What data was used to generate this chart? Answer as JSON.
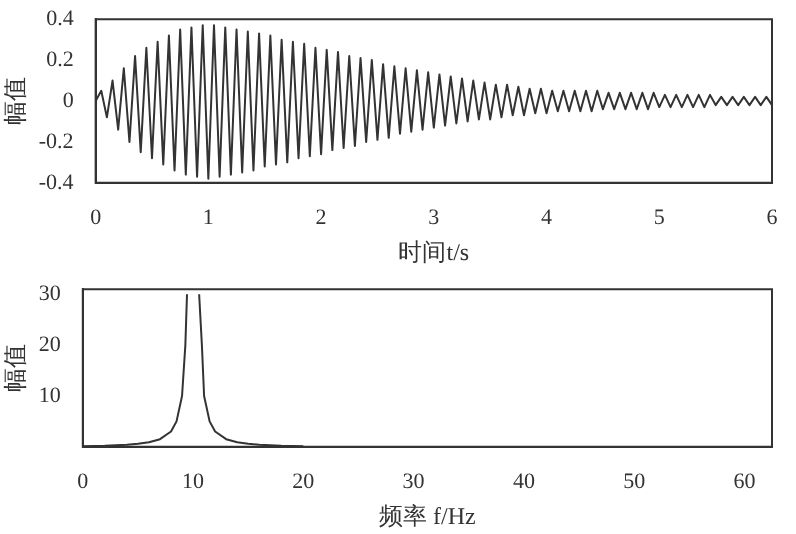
{
  "chart_data": [
    {
      "type": "line",
      "xlabel": "时间t/s",
      "ylabel": "幅值",
      "color": "#333333",
      "marker": "none",
      "xlim": [
        0,
        6
      ],
      "xticks": [
        0,
        1,
        2,
        3,
        4,
        5,
        6
      ],
      "ylim": [
        -0.4,
        0.4
      ],
      "yticks": [
        -0.4,
        -0.2,
        0,
        0.2,
        0.4
      ],
      "x": [
        0,
        0.05,
        0.1,
        0.15,
        0.2,
        0.25,
        0.3,
        0.35,
        0.4,
        0.45,
        0.5,
        0.55,
        0.6,
        0.65,
        0.7,
        0.75,
        0.8,
        0.85,
        0.9,
        0.95,
        1,
        1.05,
        1.1,
        1.15,
        1.2,
        1.25,
        1.3,
        1.35,
        1.4,
        1.45,
        1.5,
        1.55,
        1.6,
        1.65,
        1.7,
        1.75,
        1.8,
        1.85,
        1.9,
        1.95,
        2,
        2.05,
        2.1,
        2.15,
        2.2,
        2.25,
        2.3,
        2.35,
        2.4,
        2.45,
        2.5,
        2.55,
        2.6,
        2.65,
        2.7,
        2.75,
        2.8,
        2.85,
        2.9,
        2.95,
        3,
        3.05,
        3.1,
        3.15,
        3.2,
        3.25,
        3.3,
        3.35,
        3.4,
        3.45,
        3.5,
        3.55,
        3.6,
        3.65,
        3.7,
        3.75,
        3.8,
        3.85,
        3.9,
        3.95,
        4,
        4.05,
        4.1,
        4.15,
        4.2,
        4.25,
        4.3,
        4.35,
        4.4,
        4.45,
        4.5,
        4.55,
        4.6,
        4.65,
        4.7,
        4.75,
        4.8,
        4.85,
        4.9,
        4.95,
        5,
        5.05,
        5.1,
        5.15,
        5.2,
        5.25,
        5.3,
        5.35,
        5.4,
        5.45,
        5.5,
        5.55,
        5.6,
        5.65,
        5.7,
        5.75,
        5.8,
        5.85,
        5.9,
        5.95,
        6
      ],
      "values": [
        0,
        0.05,
        -0.08,
        0.1,
        -0.14,
        0.16,
        -0.2,
        0.22,
        -0.25,
        0.26,
        -0.28,
        0.29,
        -0.31,
        0.32,
        -0.34,
        0.35,
        -0.36,
        0.36,
        -0.37,
        0.37,
        -0.38,
        0.37,
        -0.37,
        0.36,
        -0.36,
        0.35,
        -0.35,
        0.34,
        -0.34,
        0.33,
        -0.32,
        0.32,
        -0.31,
        0.3,
        -0.3,
        0.29,
        -0.28,
        0.28,
        -0.27,
        0.26,
        -0.26,
        0.25,
        -0.24,
        0.24,
        -0.23,
        0.22,
        -0.22,
        0.21,
        -0.2,
        0.2,
        -0.19,
        0.18,
        -0.18,
        0.17,
        -0.16,
        0.16,
        -0.15,
        0.15,
        -0.14,
        0.14,
        -0.13,
        0.13,
        -0.12,
        0.12,
        -0.11,
        0.11,
        -0.1,
        0.1,
        -0.09,
        0.09,
        -0.09,
        0.08,
        -0.08,
        0.08,
        -0.07,
        0.07,
        -0.07,
        0.06,
        -0.06,
        0.06,
        -0.06,
        0.05,
        -0.05,
        0.05,
        -0.05,
        0.05,
        -0.05,
        0.05,
        -0.05,
        0.05,
        -0.04,
        0.04,
        -0.04,
        0.04,
        -0.04,
        0.04,
        -0.04,
        0.04,
        -0.04,
        0.04,
        -0.03,
        0.03,
        -0.03,
        0.03,
        -0.03,
        0.03,
        -0.03,
        0.03,
        -0.03,
        0.03,
        -0.02,
        0.02,
        -0.02,
        0.02,
        -0.02,
        0.02,
        -0.02,
        0.02,
        -0.02,
        0.02,
        -0.02
      ]
    },
    {
      "type": "line",
      "xlabel": "频率 f/Hz",
      "ylabel": "幅值",
      "color": "#333333",
      "marker": "none",
      "xlim": [
        0,
        62.5
      ],
      "xticks": [
        0,
        10,
        20,
        30,
        40,
        50,
        60
      ],
      "ylim": [
        0,
        31
      ],
      "yticks": [
        10,
        20,
        30
      ],
      "x": [
        0,
        2,
        4,
        5,
        6,
        7,
        8,
        8.5,
        9,
        9.3,
        9.45,
        9.5,
        10.5,
        10.55,
        10.8,
        11,
        11.5,
        12,
        13,
        14,
        15,
        16,
        18,
        20
      ],
      "values": [
        0.1,
        0.2,
        0.4,
        0.6,
        0.9,
        1.5,
        3,
        5,
        10,
        20,
        30,
        null,
        null,
        30,
        20,
        10,
        5,
        3,
        1.5,
        0.9,
        0.6,
        0.4,
        0.2,
        0.1
      ]
    }
  ]
}
